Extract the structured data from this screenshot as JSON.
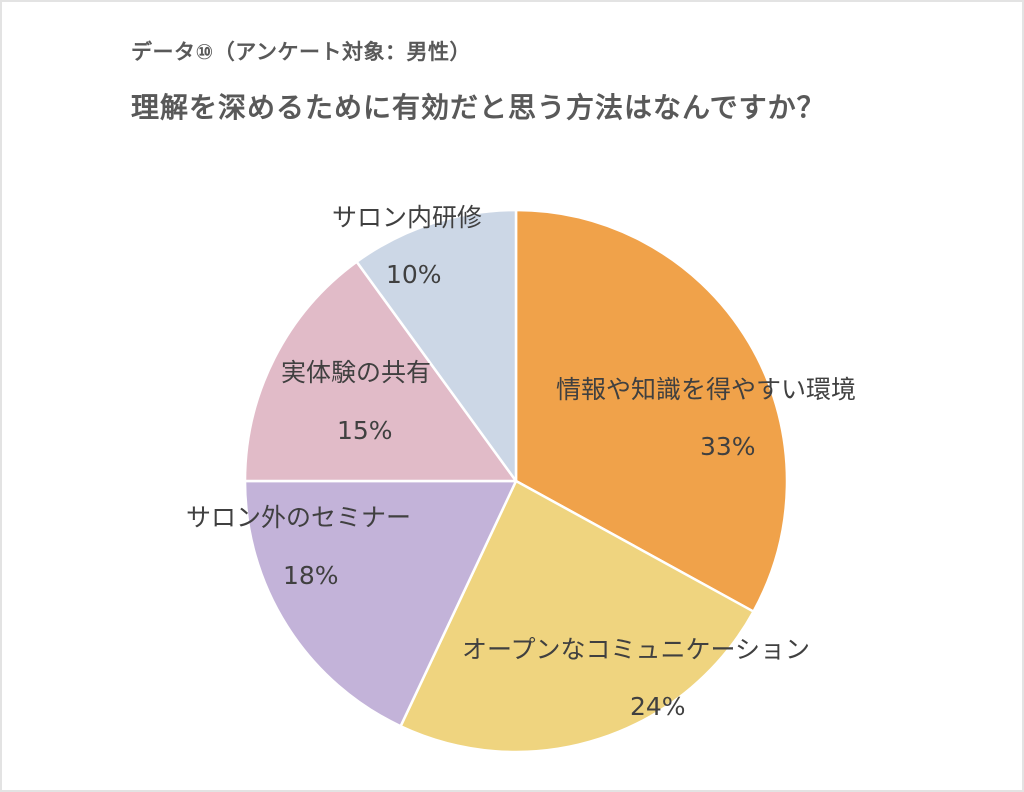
{
  "header": {
    "subtitle": "データ⑩（アンケート対象：男性）",
    "title": "理解を深めるために有効だと思う方法はなんですか？"
  },
  "chart_data": {
    "type": "pie",
    "title": "理解を深めるために有効だと思う方法はなんですか？",
    "subtitle": "データ⑩（アンケート対象：男性）",
    "start_angle": "12 o'clock",
    "direction": "clockwise",
    "categories": [
      "情報や知識を得やすい環境",
      "オープンなコミュニケーション",
      "サロン外のセミナー",
      "実体験の共有",
      "サロン内研修"
    ],
    "values": [
      33,
      24,
      18,
      15,
      10
    ],
    "labels": [
      "33%",
      "24%",
      "18%",
      "15%",
      "10%"
    ],
    "colors": [
      "#F0A24A",
      "#EFD47F",
      "#C3B3D9",
      "#E1BBC8",
      "#CCD7E6"
    ],
    "legend": "none (data labels on slices)"
  },
  "slices": [
    {
      "name": "情報や知識を得やすい環境",
      "pct": "33%"
    },
    {
      "name": "オープンなコミュニケーション",
      "pct": "24%"
    },
    {
      "name": "サロン外のセミナー",
      "pct": "18%"
    },
    {
      "name": "実体験の共有",
      "pct": "15%"
    },
    {
      "name": "サロン内研修",
      "pct": "10%"
    }
  ]
}
